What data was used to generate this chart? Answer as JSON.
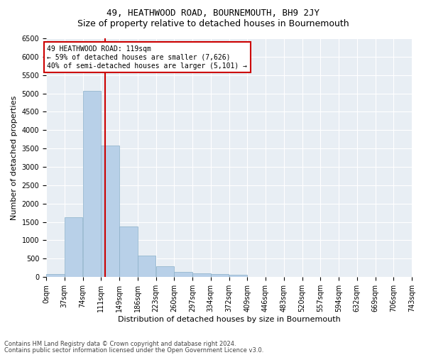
{
  "title": "49, HEATHWOOD ROAD, BOURNEMOUTH, BH9 2JY",
  "subtitle": "Size of property relative to detached houses in Bournemouth",
  "xlabel": "Distribution of detached houses by size in Bournemouth",
  "ylabel": "Number of detached properties",
  "footer1": "Contains HM Land Registry data © Crown copyright and database right 2024.",
  "footer2": "Contains public sector information licensed under the Open Government Licence v3.0.",
  "annotation_title": "49 HEATHWOOD ROAD: 119sqm",
  "annotation_line1": "← 59% of detached houses are smaller (7,626)",
  "annotation_line2": "40% of semi-detached houses are larger (5,101) →",
  "property_size": 119,
  "bin_edges": [
    0,
    37,
    74,
    111,
    148,
    185,
    222,
    259,
    296,
    333,
    370,
    407,
    444,
    481,
    518,
    555,
    592,
    629,
    666,
    703,
    740
  ],
  "bin_labels": [
    "0sqm",
    "37sqm",
    "74sqm",
    "111sqm",
    "149sqm",
    "186sqm",
    "223sqm",
    "260sqm",
    "297sqm",
    "334sqm",
    "372sqm",
    "409sqm",
    "446sqm",
    "483sqm",
    "520sqm",
    "557sqm",
    "594sqm",
    "632sqm",
    "669sqm",
    "706sqm",
    "743sqm"
  ],
  "values": [
    75,
    1625,
    5075,
    3575,
    1375,
    575,
    285,
    130,
    100,
    75,
    55,
    0,
    0,
    0,
    0,
    0,
    0,
    0,
    0,
    0
  ],
  "bar_color": "#b8d0e8",
  "bar_edge_color": "#8aafc8",
  "vline_color": "#cc0000",
  "annotation_box_edge_color": "#cc0000",
  "bg_color": "#e8eef4",
  "ylim": [
    0,
    6500
  ],
  "yticks": [
    0,
    500,
    1000,
    1500,
    2000,
    2500,
    3000,
    3500,
    4000,
    4500,
    5000,
    5500,
    6000,
    6500
  ],
  "title_fontsize": 9,
  "subtitle_fontsize": 9,
  "ylabel_fontsize": 8,
  "xlabel_fontsize": 8,
  "tick_fontsize": 7,
  "annotation_fontsize": 7,
  "footer_fontsize": 6
}
